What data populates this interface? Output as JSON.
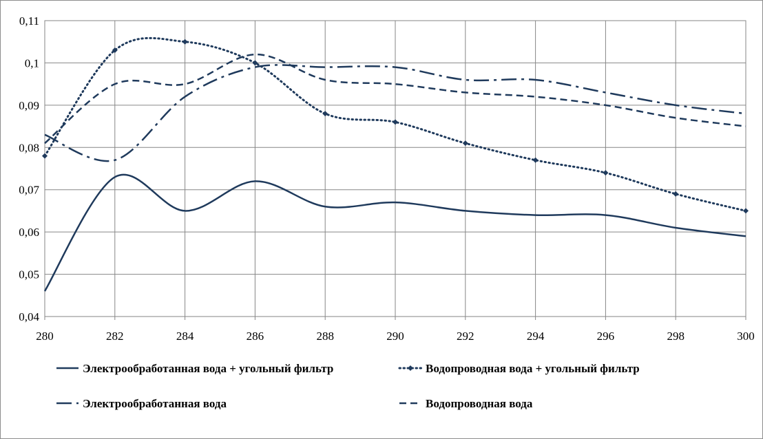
{
  "chart_data": {
    "type": "line",
    "title": "",
    "xlabel": "",
    "ylabel": "",
    "xlim": [
      280,
      300
    ],
    "ylim": [
      0.04,
      0.11
    ],
    "x_ticks": [
      "280",
      "282",
      "284",
      "286",
      "288",
      "290",
      "292",
      "294",
      "296",
      "298",
      "300"
    ],
    "y_ticks": [
      "0,04",
      "0,05",
      "0,06",
      "0,07",
      "0,08",
      "0,09",
      "0,1",
      "0,11"
    ],
    "grid": true,
    "legend_position": "bottom",
    "series": [
      {
        "name": "Электрообработанная вода + угольный фильтр",
        "style": "solid",
        "color": "#1f3a5c",
        "markers": false,
        "x": [
          280,
          282,
          284,
          286,
          288,
          290,
          292,
          294,
          296,
          298,
          300
        ],
        "y": [
          0.046,
          0.073,
          0.065,
          0.072,
          0.066,
          0.067,
          0.065,
          0.064,
          0.064,
          0.061,
          0.059
        ]
      },
      {
        "name": "Водопроводная вода + угольный фильтр",
        "style": "dotted",
        "color": "#1f3a5c",
        "markers": true,
        "x": [
          280,
          282,
          284,
          286,
          288,
          290,
          292,
          294,
          296,
          298,
          300
        ],
        "y": [
          0.078,
          0.103,
          0.105,
          0.1,
          0.088,
          0.086,
          0.081,
          0.077,
          0.074,
          0.069,
          0.065
        ]
      },
      {
        "name": "Электрообработанная вода",
        "style": "dashdot",
        "color": "#1f3a5c",
        "markers": false,
        "x": [
          280,
          282,
          284,
          286,
          288,
          290,
          292,
          294,
          296,
          298,
          300
        ],
        "y": [
          0.083,
          0.077,
          0.092,
          0.099,
          0.099,
          0.099,
          0.096,
          0.096,
          0.093,
          0.09,
          0.088
        ]
      },
      {
        "name": "Водопроводная вода",
        "style": "dashed",
        "color": "#1f3a5c",
        "markers": false,
        "x": [
          280,
          282,
          284,
          286,
          288,
          290,
          292,
          294,
          296,
          298,
          300
        ],
        "y": [
          0.081,
          0.095,
          0.095,
          0.102,
          0.096,
          0.095,
          0.093,
          0.092,
          0.09,
          0.087,
          0.085
        ]
      }
    ]
  }
}
